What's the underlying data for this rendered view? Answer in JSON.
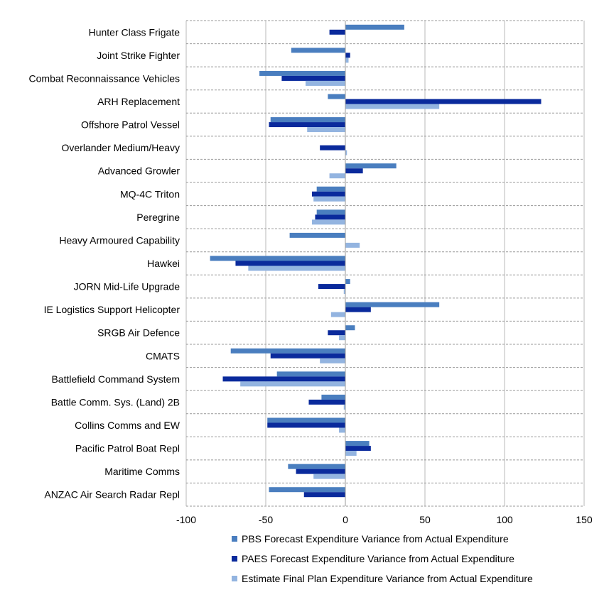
{
  "chart_data": {
    "type": "bar",
    "orientation": "horizontal",
    "categories": [
      "Hunter Class Frigate",
      "Joint Strike Fighter",
      "Combat Reconnaissance Vehicles",
      "ARH Replacement ",
      "Offshore Patrol Vessel",
      "Overlander Medium/Heavy",
      "Advanced Growler",
      "MQ-4C Triton",
      "Peregrine",
      "Heavy Armoured Capability",
      "Hawkei",
      "JORN Mid-Life Upgrade",
      "IE Logistics Support Helicopter",
      "SRGB Air Defence",
      "CMATS",
      "Battlefield Command System",
      "Battle Comm. Sys. (Land) 2B",
      "Collins Comms and EW",
      "Pacific Patrol Boat Repl",
      "Maritime Comms",
      "ANZAC Air Search Radar Repl"
    ],
    "series": [
      {
        "name": "PBS Forecast Expenditure Variance from Actual Expenditure",
        "color": "#4a7ebf",
        "values": [
          37,
          -34,
          -54,
          -11,
          -47,
          0,
          32,
          -18,
          -18,
          -35,
          -85,
          3,
          59,
          6,
          -72,
          -43,
          -15,
          -49,
          15,
          -36,
          -48
        ]
      },
      {
        "name": "PAES Forecast Expenditure Variance from Actual Expenditure",
        "color": "#0a2a9c",
        "values": [
          -10,
          3,
          -40,
          123,
          -48,
          -16,
          11,
          -21,
          -19,
          0,
          -69,
          -17,
          16,
          -11,
          -47,
          -77,
          -23,
          -49,
          16,
          -31,
          -26
        ]
      },
      {
        "name": "Estimate Final Plan Expenditure Variance from Actual Expenditure",
        "color": "#93b4e0",
        "values": [
          0,
          2,
          -25,
          59,
          -24,
          1,
          -10,
          -20,
          -21,
          9,
          -61,
          -1,
          -9,
          -4,
          -16,
          -66,
          -1,
          -4,
          7,
          -20,
          0
        ]
      }
    ],
    "xlim": [
      -100,
      150
    ],
    "xticks": [
      "-100",
      "-50",
      "0",
      "50",
      "100",
      "150"
    ],
    "grid": true,
    "legend_position": "bottom"
  }
}
